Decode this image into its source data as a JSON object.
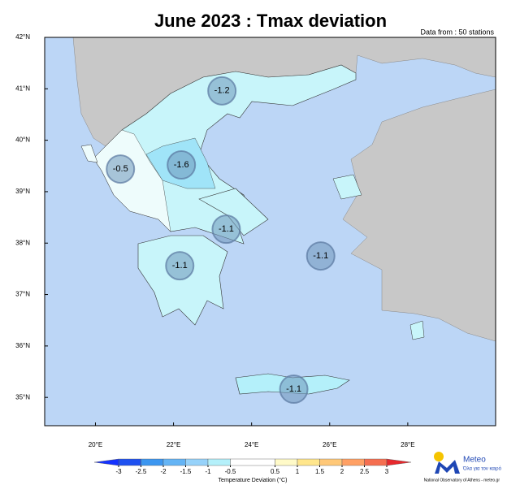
{
  "title": "June 2023 : Tmax deviation",
  "note": "Data from : 50 stations",
  "map": {
    "xlim": [
      18.7,
      30.25
    ],
    "ylim": [
      34.45,
      42
    ],
    "xticks": [
      {
        "value": 20,
        "label": "20°E"
      },
      {
        "value": 22,
        "label": "22°E"
      },
      {
        "value": 24,
        "label": "24°E"
      },
      {
        "value": 26,
        "label": "26°E"
      },
      {
        "value": 28,
        "label": "28°E"
      }
    ],
    "yticks": [
      {
        "value": 35,
        "label": "35°N"
      },
      {
        "value": 36,
        "label": "36°N"
      },
      {
        "value": 37,
        "label": "37°N"
      },
      {
        "value": 38,
        "label": "38°N"
      },
      {
        "value": 39,
        "label": "39°N"
      },
      {
        "value": 40,
        "label": "40°N"
      },
      {
        "value": 41,
        "label": "41°N"
      },
      {
        "value": 42,
        "label": "42°N"
      }
    ]
  },
  "stations": [
    {
      "lon": 23.24,
      "lat": 40.96,
      "value": -1.2
    },
    {
      "lon": 20.64,
      "lat": 39.44,
      "value": -0.5
    },
    {
      "lon": 22.2,
      "lat": 39.52,
      "value": -1.6
    },
    {
      "lon": 23.35,
      "lat": 38.27,
      "value": -1.1
    },
    {
      "lon": 25.77,
      "lat": 37.75,
      "value": -1.1
    },
    {
      "lon": 22.16,
      "lat": 37.56,
      "value": -1.1
    },
    {
      "lon": 25.08,
      "lat": 35.16,
      "value": -1.1
    }
  ],
  "colorbar": {
    "ticks": [
      -3,
      -2.5,
      -2,
      -1.5,
      -1,
      -0.5,
      0.5,
      1,
      1.5,
      2,
      2.5,
      3
    ],
    "colors": [
      "#1e50f0",
      "#3c96f0",
      "#64b4f5",
      "#96d2fa",
      "#b4f0fa",
      "#ffffff",
      "#fffac8",
      "#ffe68c",
      "#ffc878",
      "#ffa064",
      "#f56e50"
    ],
    "under_color": "#1432ff",
    "over_color": "#e6282d",
    "label": "Temperature Deviation (°C)"
  },
  "logo": {
    "name": "Meteo",
    "tagline": "Όλα για τον καιρό",
    "credit": "National Observatory of Athens - meteo.gr"
  }
}
